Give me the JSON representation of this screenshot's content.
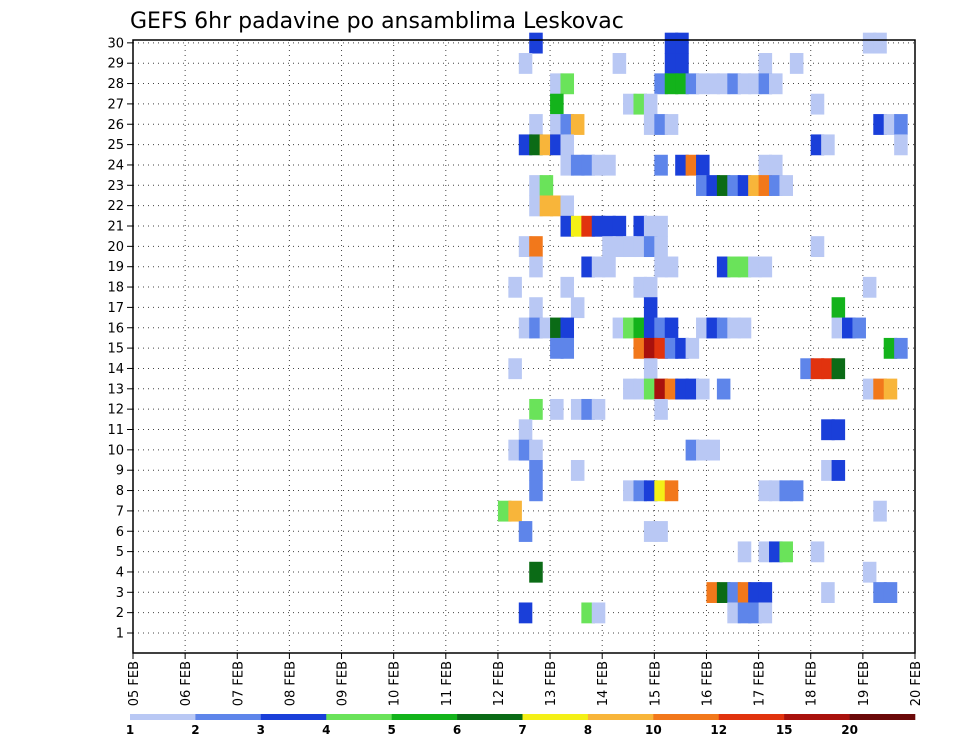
{
  "chart_data": {
    "type": "heatmap",
    "title": "GEFS 6hr padavine po ansamblima Leskovac",
    "x_ticks": [
      "05 FEB",
      "06 FEB",
      "07 FEB",
      "08 FEB",
      "09 FEB",
      "10 FEB",
      "11 FEB",
      "12 FEB",
      "13 FEB",
      "14 FEB",
      "15 FEB",
      "16 FEB",
      "17 FEB",
      "18 FEB",
      "19 FEB",
      "20 FEB"
    ],
    "y_ticks": [
      "1",
      "2",
      "3",
      "4",
      "5",
      "6",
      "7",
      "8",
      "9",
      "10",
      "11",
      "12",
      "13",
      "14",
      "15",
      "16",
      "17",
      "18",
      "19",
      "20",
      "21",
      "22",
      "23",
      "24",
      "25",
      "26",
      "27",
      "28",
      "29",
      "30"
    ],
    "colorbar": {
      "labels": [
        "1",
        "2",
        "3",
        "4",
        "5",
        "6",
        "7",
        "8",
        "10",
        "12",
        "15",
        "20"
      ],
      "colors": [
        "#b9c8f4",
        "#5e85ea",
        "#1a3fd9",
        "#6ae35a",
        "#13b31b",
        "#0b6b16",
        "#f4f016",
        "#f8b53a",
        "#f2781b",
        "#e1330e",
        "#a9110d",
        "#6b0909"
      ]
    },
    "cells": [
      [
        30,
        15.2,
        2
      ],
      [
        30,
        15.4,
        2
      ],
      [
        30,
        12.6,
        2
      ],
      [
        30,
        19.0,
        0
      ],
      [
        30,
        19.2,
        0
      ],
      [
        29,
        12.4,
        0
      ],
      [
        29,
        14.2,
        0
      ],
      [
        29,
        15.2,
        2
      ],
      [
        29,
        15.4,
        2
      ],
      [
        29,
        17.0,
        0
      ],
      [
        29,
        17.6,
        0
      ],
      [
        28,
        13.0,
        0
      ],
      [
        28,
        13.2,
        3
      ],
      [
        28,
        15.0,
        1
      ],
      [
        28,
        15.2,
        4
      ],
      [
        28,
        15.4,
        4
      ],
      [
        28,
        15.6,
        1
      ],
      [
        28,
        15.8,
        0
      ],
      [
        28,
        16.0,
        0
      ],
      [
        28,
        16.2,
        0
      ],
      [
        28,
        16.4,
        1
      ],
      [
        28,
        16.6,
        0
      ],
      [
        28,
        16.8,
        0
      ],
      [
        28,
        17.0,
        1
      ],
      [
        28,
        17.2,
        0
      ],
      [
        27,
        13.0,
        4
      ],
      [
        27,
        14.4,
        0
      ],
      [
        27,
        14.6,
        3
      ],
      [
        27,
        14.8,
        0
      ],
      [
        27,
        18.0,
        0
      ],
      [
        26,
        12.6,
        0
      ],
      [
        26,
        13.0,
        0
      ],
      [
        26,
        13.2,
        1
      ],
      [
        26,
        13.4,
        7
      ],
      [
        26,
        14.8,
        0
      ],
      [
        26,
        15.0,
        1
      ],
      [
        26,
        15.2,
        0
      ],
      [
        26,
        19.2,
        2
      ],
      [
        26,
        19.4,
        0
      ],
      [
        26,
        19.6,
        1
      ],
      [
        25,
        12.4,
        2
      ],
      [
        25,
        12.6,
        5
      ],
      [
        25,
        12.8,
        7
      ],
      [
        25,
        13.0,
        2
      ],
      [
        25,
        13.2,
        0
      ],
      [
        25,
        18.0,
        2
      ],
      [
        25,
        18.2,
        0
      ],
      [
        25,
        19.6,
        0
      ],
      [
        24,
        13.2,
        0
      ],
      [
        24,
        13.4,
        1
      ],
      [
        24,
        13.6,
        1
      ],
      [
        24,
        13.8,
        0
      ],
      [
        24,
        14.0,
        0
      ],
      [
        24,
        15.0,
        1
      ],
      [
        24,
        15.4,
        2
      ],
      [
        24,
        15.6,
        8
      ],
      [
        24,
        15.8,
        2
      ],
      [
        24,
        17.0,
        0
      ],
      [
        24,
        17.2,
        0
      ],
      [
        23,
        12.6,
        0
      ],
      [
        23,
        12.8,
        3
      ],
      [
        23,
        15.8,
        1
      ],
      [
        23,
        16.0,
        2
      ],
      [
        23,
        16.2,
        5
      ],
      [
        23,
        16.4,
        1
      ],
      [
        23,
        16.6,
        2
      ],
      [
        23,
        16.8,
        7
      ],
      [
        23,
        17.0,
        8
      ],
      [
        23,
        17.2,
        1
      ],
      [
        23,
        17.4,
        0
      ],
      [
        22,
        12.6,
        0
      ],
      [
        22,
        12.8,
        7
      ],
      [
        22,
        13.0,
        7
      ],
      [
        22,
        13.2,
        0
      ],
      [
        21,
        13.2,
        2
      ],
      [
        21,
        13.4,
        6
      ],
      [
        21,
        13.6,
        9
      ],
      [
        21,
        13.8,
        2
      ],
      [
        21,
        14.0,
        2
      ],
      [
        21,
        14.2,
        2
      ],
      [
        21,
        14.6,
        2
      ],
      [
        21,
        14.8,
        0
      ],
      [
        21,
        15.0,
        0
      ],
      [
        20,
        12.4,
        0
      ],
      [
        20,
        12.6,
        8
      ],
      [
        20,
        14.0,
        0
      ],
      [
        20,
        14.2,
        0
      ],
      [
        20,
        14.4,
        0
      ],
      [
        20,
        14.6,
        0
      ],
      [
        20,
        14.8,
        1
      ],
      [
        20,
        15.0,
        0
      ],
      [
        20,
        18.0,
        0
      ],
      [
        19,
        12.6,
        0
      ],
      [
        19,
        13.6,
        2
      ],
      [
        19,
        13.8,
        0
      ],
      [
        19,
        14.0,
        0
      ],
      [
        19,
        15.0,
        0
      ],
      [
        19,
        15.2,
        0
      ],
      [
        19,
        16.2,
        2
      ],
      [
        19,
        16.4,
        3
      ],
      [
        19,
        16.6,
        3
      ],
      [
        19,
        16.8,
        0
      ],
      [
        19,
        17.0,
        0
      ],
      [
        18,
        12.2,
        0
      ],
      [
        18,
        13.2,
        0
      ],
      [
        18,
        14.6,
        0
      ],
      [
        18,
        14.8,
        0
      ],
      [
        18,
        19.0,
        0
      ],
      [
        17,
        12.6,
        0
      ],
      [
        17,
        13.4,
        0
      ],
      [
        17,
        14.8,
        2
      ],
      [
        17,
        18.4,
        4
      ],
      [
        16,
        12.4,
        0
      ],
      [
        16,
        12.6,
        1
      ],
      [
        16,
        12.8,
        0
      ],
      [
        16,
        13.0,
        5
      ],
      [
        16,
        13.2,
        2
      ],
      [
        16,
        14.2,
        0
      ],
      [
        16,
        14.4,
        3
      ],
      [
        16,
        14.6,
        4
      ],
      [
        16,
        14.8,
        2
      ],
      [
        16,
        15.0,
        1
      ],
      [
        16,
        15.2,
        2
      ],
      [
        16,
        15.8,
        0
      ],
      [
        16,
        16.0,
        2
      ],
      [
        16,
        16.2,
        1
      ],
      [
        16,
        16.4,
        0
      ],
      [
        16,
        16.6,
        0
      ],
      [
        16,
        18.4,
        0
      ],
      [
        16,
        18.6,
        2
      ],
      [
        16,
        18.8,
        1
      ],
      [
        15,
        13.0,
        1
      ],
      [
        15,
        13.2,
        1
      ],
      [
        15,
        14.6,
        8
      ],
      [
        15,
        14.8,
        10
      ],
      [
        15,
        15.0,
        9
      ],
      [
        15,
        15.2,
        1
      ],
      [
        15,
        15.4,
        2
      ],
      [
        15,
        15.6,
        0
      ],
      [
        15,
        19.4,
        4
      ],
      [
        15,
        19.6,
        1
      ],
      [
        14,
        12.2,
        0
      ],
      [
        14,
        14.8,
        0
      ],
      [
        14,
        17.8,
        1
      ],
      [
        14,
        18.0,
        9
      ],
      [
        14,
        18.2,
        9
      ],
      [
        14,
        18.4,
        5
      ],
      [
        13,
        14.4,
        0
      ],
      [
        13,
        14.6,
        0
      ],
      [
        13,
        14.8,
        3
      ],
      [
        13,
        15.0,
        10
      ],
      [
        13,
        15.2,
        8
      ],
      [
        13,
        15.4,
        2
      ],
      [
        13,
        15.6,
        2
      ],
      [
        13,
        15.8,
        0
      ],
      [
        13,
        16.2,
        1
      ],
      [
        13,
        19.0,
        0
      ],
      [
        13,
        19.2,
        8
      ],
      [
        13,
        19.4,
        7
      ],
      [
        12,
        12.6,
        3
      ],
      [
        12,
        13.0,
        0
      ],
      [
        12,
        13.4,
        0
      ],
      [
        12,
        13.6,
        1
      ],
      [
        12,
        13.8,
        0
      ],
      [
        12,
        15.0,
        0
      ],
      [
        11,
        12.4,
        0
      ],
      [
        11,
        18.2,
        2
      ],
      [
        11,
        18.4,
        2
      ],
      [
        10,
        12.2,
        0
      ],
      [
        10,
        12.4,
        1
      ],
      [
        10,
        12.6,
        0
      ],
      [
        10,
        15.6,
        1
      ],
      [
        10,
        15.8,
        0
      ],
      [
        10,
        16.0,
        0
      ],
      [
        9,
        12.6,
        1
      ],
      [
        9,
        13.4,
        0
      ],
      [
        9,
        18.2,
        0
      ],
      [
        9,
        18.4,
        2
      ],
      [
        8,
        12.6,
        1
      ],
      [
        8,
        14.4,
        0
      ],
      [
        8,
        14.6,
        1
      ],
      [
        8,
        14.8,
        2
      ],
      [
        8,
        15.0,
        6
      ],
      [
        8,
        15.2,
        8
      ],
      [
        8,
        17.0,
        0
      ],
      [
        8,
        17.2,
        0
      ],
      [
        8,
        17.4,
        1
      ],
      [
        8,
        17.6,
        1
      ],
      [
        7,
        12.0,
        3
      ],
      [
        7,
        12.2,
        7
      ],
      [
        7,
        19.2,
        0
      ],
      [
        6,
        12.4,
        1
      ],
      [
        6,
        14.8,
        0
      ],
      [
        6,
        15.0,
        0
      ],
      [
        5,
        16.6,
        0
      ],
      [
        5,
        17.0,
        0
      ],
      [
        5,
        17.2,
        2
      ],
      [
        5,
        17.4,
        3
      ],
      [
        5,
        18.0,
        0
      ],
      [
        4,
        12.6,
        5
      ],
      [
        4,
        19.0,
        0
      ],
      [
        3,
        16.0,
        8
      ],
      [
        3,
        16.2,
        5
      ],
      [
        3,
        16.4,
        1
      ],
      [
        3,
        16.6,
        8
      ],
      [
        3,
        16.8,
        2
      ],
      [
        3,
        17.0,
        2
      ],
      [
        3,
        18.2,
        0
      ],
      [
        3,
        19.2,
        1
      ],
      [
        3,
        19.4,
        1
      ],
      [
        2,
        12.4,
        2
      ],
      [
        2,
        13.6,
        3
      ],
      [
        2,
        13.8,
        0
      ],
      [
        2,
        16.4,
        0
      ],
      [
        2,
        16.6,
        1
      ],
      [
        2,
        16.8,
        1
      ],
      [
        2,
        17.0,
        0
      ]
    ],
    "grid": true
  }
}
